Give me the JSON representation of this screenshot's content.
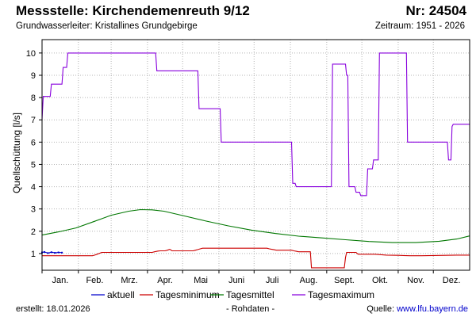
{
  "header": {
    "title": "Messstelle: Kirchendemenreuth 9/12",
    "nr": "Nr: 24504",
    "subtitle": "Grundwasserleiter: Kristallines Grundgebirge",
    "period": "Zeitraum: 1951 - 2026"
  },
  "footer": {
    "created_label": "erstellt:",
    "created_date": "18.01.2026",
    "center": "- Rohdaten -",
    "source_label": "Quelle:",
    "source_url": "www.lfu.bayern.de"
  },
  "colors": {
    "aktuell": "#0000cc",
    "Tagesminimum": "#cc0000",
    "Tagesmittel": "#007700",
    "Tagesmaximum": "#8800dd",
    "grid": "#b4b4b4",
    "axis": "#000000"
  },
  "chart_data": {
    "type": "line",
    "xlabel": "",
    "ylabel": "Quellschüttung [l/s]",
    "x_unit": "day of year",
    "xlim": [
      1,
      366
    ],
    "ylim": [
      0.25,
      10.6
    ],
    "y_ticks": [
      1,
      2,
      3,
      4,
      5,
      6,
      7,
      8,
      9,
      10
    ],
    "month_labels": [
      "Jan.",
      "Feb.",
      "Mrz.",
      "Apr.",
      "Mai",
      "Juni",
      "Juli",
      "Aug.",
      "Sept.",
      "Okt.",
      "Nov.",
      "Dez."
    ],
    "month_start_days": [
      1,
      32,
      60,
      91,
      121,
      152,
      182,
      213,
      244,
      274,
      305,
      335
    ],
    "grid": true,
    "legend_position": "bottom",
    "series": [
      {
        "name": "aktuell",
        "x": [
          1,
          3,
          6,
          9,
          12,
          15,
          18
        ],
        "y": [
          1.05,
          1.07,
          1.02,
          1.06,
          1.03,
          1.05,
          1.04
        ]
      },
      {
        "name": "Tagesminimum",
        "x": [
          1,
          44,
          46,
          48,
          50,
          52,
          95,
          97,
          100,
          102,
          104,
          106,
          108,
          110,
          112,
          130,
          132,
          134,
          136,
          138,
          193,
          195,
          197,
          199,
          201,
          214,
          216,
          218,
          220,
          222,
          230,
          231,
          259,
          260,
          261,
          269,
          270,
          271,
          285,
          295,
          305,
          315,
          325,
          345,
          355,
          366
        ],
        "y": [
          0.9,
          0.9,
          0.93,
          0.97,
          1.01,
          1.05,
          1.05,
          1.08,
          1.11,
          1.12,
          1.12,
          1.12,
          1.15,
          1.19,
          1.12,
          1.12,
          1.15,
          1.18,
          1.21,
          1.24,
          1.24,
          1.21,
          1.19,
          1.17,
          1.15,
          1.15,
          1.12,
          1.1,
          1.08,
          1.08,
          1.08,
          0.36,
          0.36,
          0.82,
          1.05,
          1.05,
          1.0,
          0.97,
          0.97,
          0.93,
          0.92,
          0.9,
          0.9,
          0.92,
          0.93,
          0.93
        ]
      },
      {
        "name": "Tagesmittel",
        "x": [
          1,
          15,
          30,
          45,
          60,
          75,
          85,
          95,
          105,
          120,
          140,
          160,
          180,
          200,
          220,
          240,
          260,
          280,
          300,
          320,
          340,
          355,
          366
        ],
        "y": [
          1.83,
          1.97,
          2.15,
          2.43,
          2.72,
          2.9,
          2.97,
          2.96,
          2.9,
          2.72,
          2.47,
          2.24,
          2.05,
          1.9,
          1.78,
          1.7,
          1.62,
          1.54,
          1.49,
          1.49,
          1.55,
          1.65,
          1.79
        ]
      },
      {
        "name": "Tagesmaximum",
        "x": [
          1,
          2,
          8,
          9,
          18,
          19,
          22,
          23,
          98,
          99,
          134,
          135,
          153,
          154,
          214,
          215,
          217,
          218,
          248,
          249,
          260,
          261,
          262,
          263,
          268,
          269,
          272,
          273,
          278,
          279,
          283,
          284,
          288,
          289,
          312,
          313,
          347,
          348,
          350,
          351,
          352,
          353,
          366
        ],
        "y": [
          7.0,
          8.05,
          8.05,
          8.6,
          8.6,
          9.35,
          9.35,
          10.0,
          10.0,
          9.2,
          9.2,
          7.5,
          7.5,
          6.0,
          6.0,
          4.15,
          4.15,
          4.0,
          4.0,
          9.5,
          9.5,
          9.0,
          9.0,
          4.0,
          4.0,
          3.75,
          3.75,
          3.6,
          3.6,
          4.8,
          4.8,
          5.2,
          5.2,
          10.0,
          10.0,
          6.0,
          6.0,
          5.2,
          5.2,
          6.7,
          6.8,
          6.8,
          6.8
        ]
      }
    ]
  }
}
